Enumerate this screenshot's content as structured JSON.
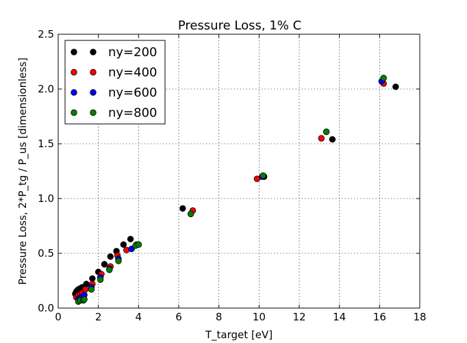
{
  "chart_data": {
    "type": "scatter",
    "title": "Pressure Loss, 1% C",
    "xlabel": "T_target [eV]",
    "ylabel": "Pressure Loss, 2*P_tg / P_us [dimensionless]",
    "xlim": [
      0,
      18
    ],
    "ylim": [
      0,
      2.5
    ],
    "xticks": [
      "0",
      "2",
      "4",
      "6",
      "8",
      "10",
      "12",
      "14",
      "16",
      "18"
    ],
    "yticks": [
      "0.0",
      "0.5",
      "1.0",
      "1.5",
      "2.0",
      "2.5"
    ],
    "grid": true,
    "legend_position": "top-left",
    "series": [
      {
        "name": "ny=200",
        "color": "#000000",
        "points": [
          [
            0.85,
            0.13
          ],
          [
            0.9,
            0.15
          ],
          [
            0.95,
            0.16
          ],
          [
            1.0,
            0.17
          ],
          [
            1.1,
            0.18
          ],
          [
            1.2,
            0.19
          ],
          [
            1.4,
            0.22
          ],
          [
            1.7,
            0.27
          ],
          [
            2.0,
            0.33
          ],
          [
            2.3,
            0.4
          ],
          [
            2.6,
            0.47
          ],
          [
            2.9,
            0.52
          ],
          [
            3.25,
            0.58
          ],
          [
            3.6,
            0.63
          ],
          [
            6.2,
            0.91
          ],
          [
            10.25,
            1.2
          ],
          [
            13.65,
            1.54
          ],
          [
            16.8,
            2.02
          ]
        ]
      },
      {
        "name": "ny=400",
        "color": "#ff0000",
        "points": [
          [
            0.9,
            0.1
          ],
          [
            1.0,
            0.12
          ],
          [
            1.1,
            0.13
          ],
          [
            1.2,
            0.14
          ],
          [
            1.35,
            0.17
          ],
          [
            1.7,
            0.22
          ],
          [
            2.15,
            0.31
          ],
          [
            2.6,
            0.38
          ],
          [
            2.95,
            0.48
          ],
          [
            3.4,
            0.53
          ],
          [
            3.9,
            0.58
          ],
          [
            6.7,
            0.89
          ],
          [
            9.9,
            1.18
          ],
          [
            13.1,
            1.55
          ],
          [
            16.2,
            2.05
          ]
        ]
      },
      {
        "name": "ny=600",
        "color": "#0000ff",
        "points": [
          [
            1.0,
            0.08
          ],
          [
            1.15,
            0.1
          ],
          [
            1.3,
            0.12
          ],
          [
            1.65,
            0.19
          ],
          [
            2.1,
            0.28
          ],
          [
            2.55,
            0.36
          ],
          [
            3.0,
            0.45
          ],
          [
            3.65,
            0.54
          ],
          [
            4.0,
            0.58
          ],
          [
            6.6,
            0.86
          ],
          [
            10.15,
            1.2
          ],
          [
            13.35,
            1.61
          ],
          [
            16.1,
            2.07
          ]
        ]
      },
      {
        "name": "ny=800",
        "color": "#008000",
        "points": [
          [
            1.0,
            0.06
          ],
          [
            1.1,
            0.07
          ],
          [
            1.25,
            0.07
          ],
          [
            1.3,
            0.08
          ],
          [
            1.65,
            0.17
          ],
          [
            2.1,
            0.26
          ],
          [
            2.55,
            0.35
          ],
          [
            3.0,
            0.43
          ],
          [
            3.85,
            0.57
          ],
          [
            4.0,
            0.58
          ],
          [
            6.6,
            0.86
          ],
          [
            10.2,
            1.21
          ],
          [
            13.35,
            1.61
          ],
          [
            16.2,
            2.1
          ]
        ]
      }
    ]
  }
}
